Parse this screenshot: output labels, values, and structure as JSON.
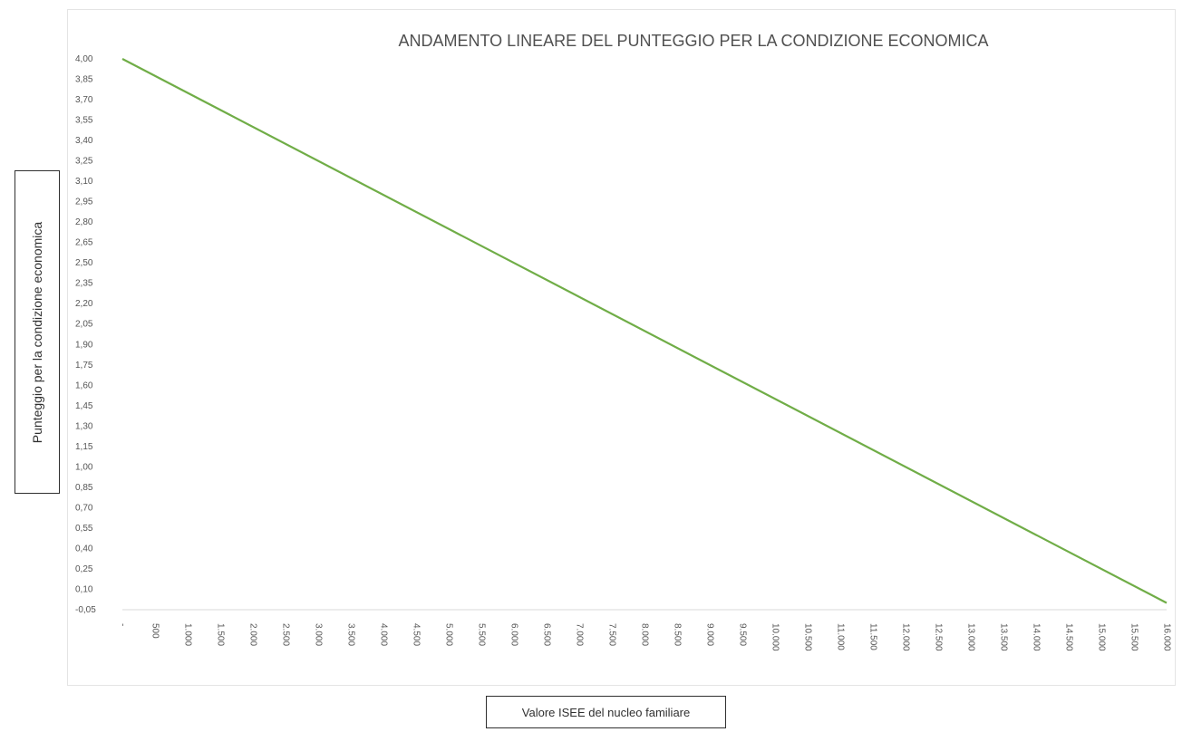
{
  "chart_data": {
    "type": "line",
    "title": "ANDAMENTO LINEARE DEL PUNTEGGIO PER LA CONDIZIONE ECONOMICA",
    "xlabel": "Valore  ISEE del nucleo familiare",
    "ylabel": "Punteggio   per   la  condizione  economica",
    "x_tick_labels": [
      "-",
      "500",
      "1.000",
      "1.500",
      "2.000",
      "2.500",
      "3.000",
      "3.500",
      "4.000",
      "4.500",
      "5.000",
      "5.500",
      "6.000",
      "6.500",
      "7.000",
      "7.500",
      "8.000",
      "8.500",
      "9.000",
      "9.500",
      "10.000",
      "10.500",
      "11.000",
      "11.500",
      "12.000",
      "12.500",
      "13.000",
      "13.500",
      "14.000",
      "14.500",
      "15.000",
      "15.500",
      "16.000"
    ],
    "y_tick_labels": [
      "4,00",
      "3,85",
      "3,70",
      "3,55",
      "3,40",
      "3,25",
      "3,10",
      "2,95",
      "2,80",
      "2,65",
      "2,50",
      "2,35",
      "2,20",
      "2,05",
      "1,90",
      "1,75",
      "1,60",
      "1,45",
      "1,30",
      "1,15",
      "1,00",
      "0,85",
      "0,70",
      "0,55",
      "0,40",
      "0,25",
      "0,10",
      "-0,05"
    ],
    "xlim": [
      0,
      16000
    ],
    "ylim": [
      -0.05,
      4.0
    ],
    "series": [
      {
        "x": [
          0,
          16000
        ],
        "y": [
          4.0,
          0.0
        ],
        "color": "#70AD47"
      }
    ],
    "grid": false,
    "legend": "none"
  }
}
